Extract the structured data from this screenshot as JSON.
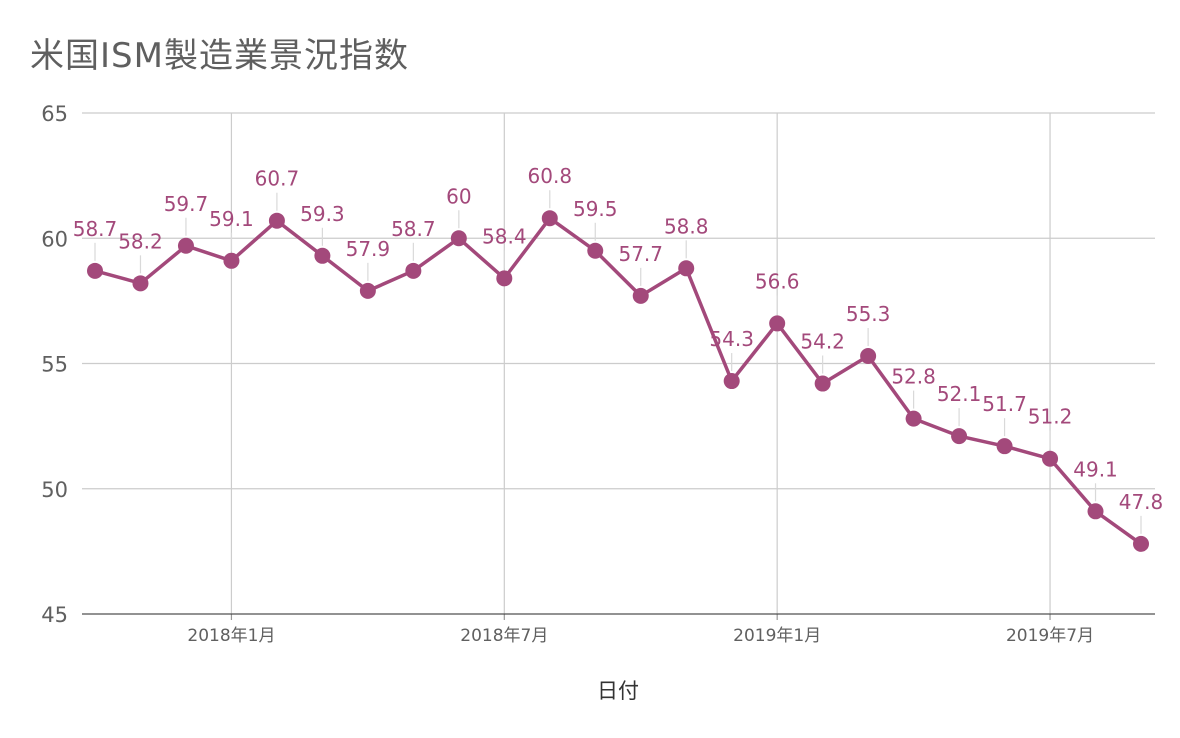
{
  "chart_data": {
    "type": "line",
    "title": "米国ISM製造業景況指数",
    "xlabel": "日付",
    "ylabel": "",
    "ylim": [
      45,
      65
    ],
    "yticks": [
      "45",
      "50",
      "55",
      "60",
      "65"
    ],
    "xticks": [
      "2018年1月",
      "2018年7月",
      "2019年1月",
      "2019年7月"
    ],
    "grid": true,
    "color": "#a3497b",
    "series": [
      {
        "values": [
          58.7,
          58.2,
          59.7,
          59.1,
          60.7,
          59.3,
          57.9,
          58.7,
          60,
          58.4,
          60.8,
          59.5,
          57.7,
          58.8,
          54.3,
          56.6,
          54.2,
          55.3,
          52.8,
          52.1,
          51.7,
          51.2,
          49.1,
          47.8
        ],
        "labels": [
          "58.7",
          "58.2",
          "59.7",
          "59.1",
          "60.7",
          "59.3",
          "57.9",
          "58.7",
          "60",
          "58.4",
          "60.8",
          "59.5",
          "57.7",
          "58.8",
          "54.3",
          "56.6",
          "54.2",
          "55.3",
          "52.8",
          "52.1",
          "51.7",
          "51.2",
          "49.1",
          "47.8"
        ]
      }
    ]
  }
}
